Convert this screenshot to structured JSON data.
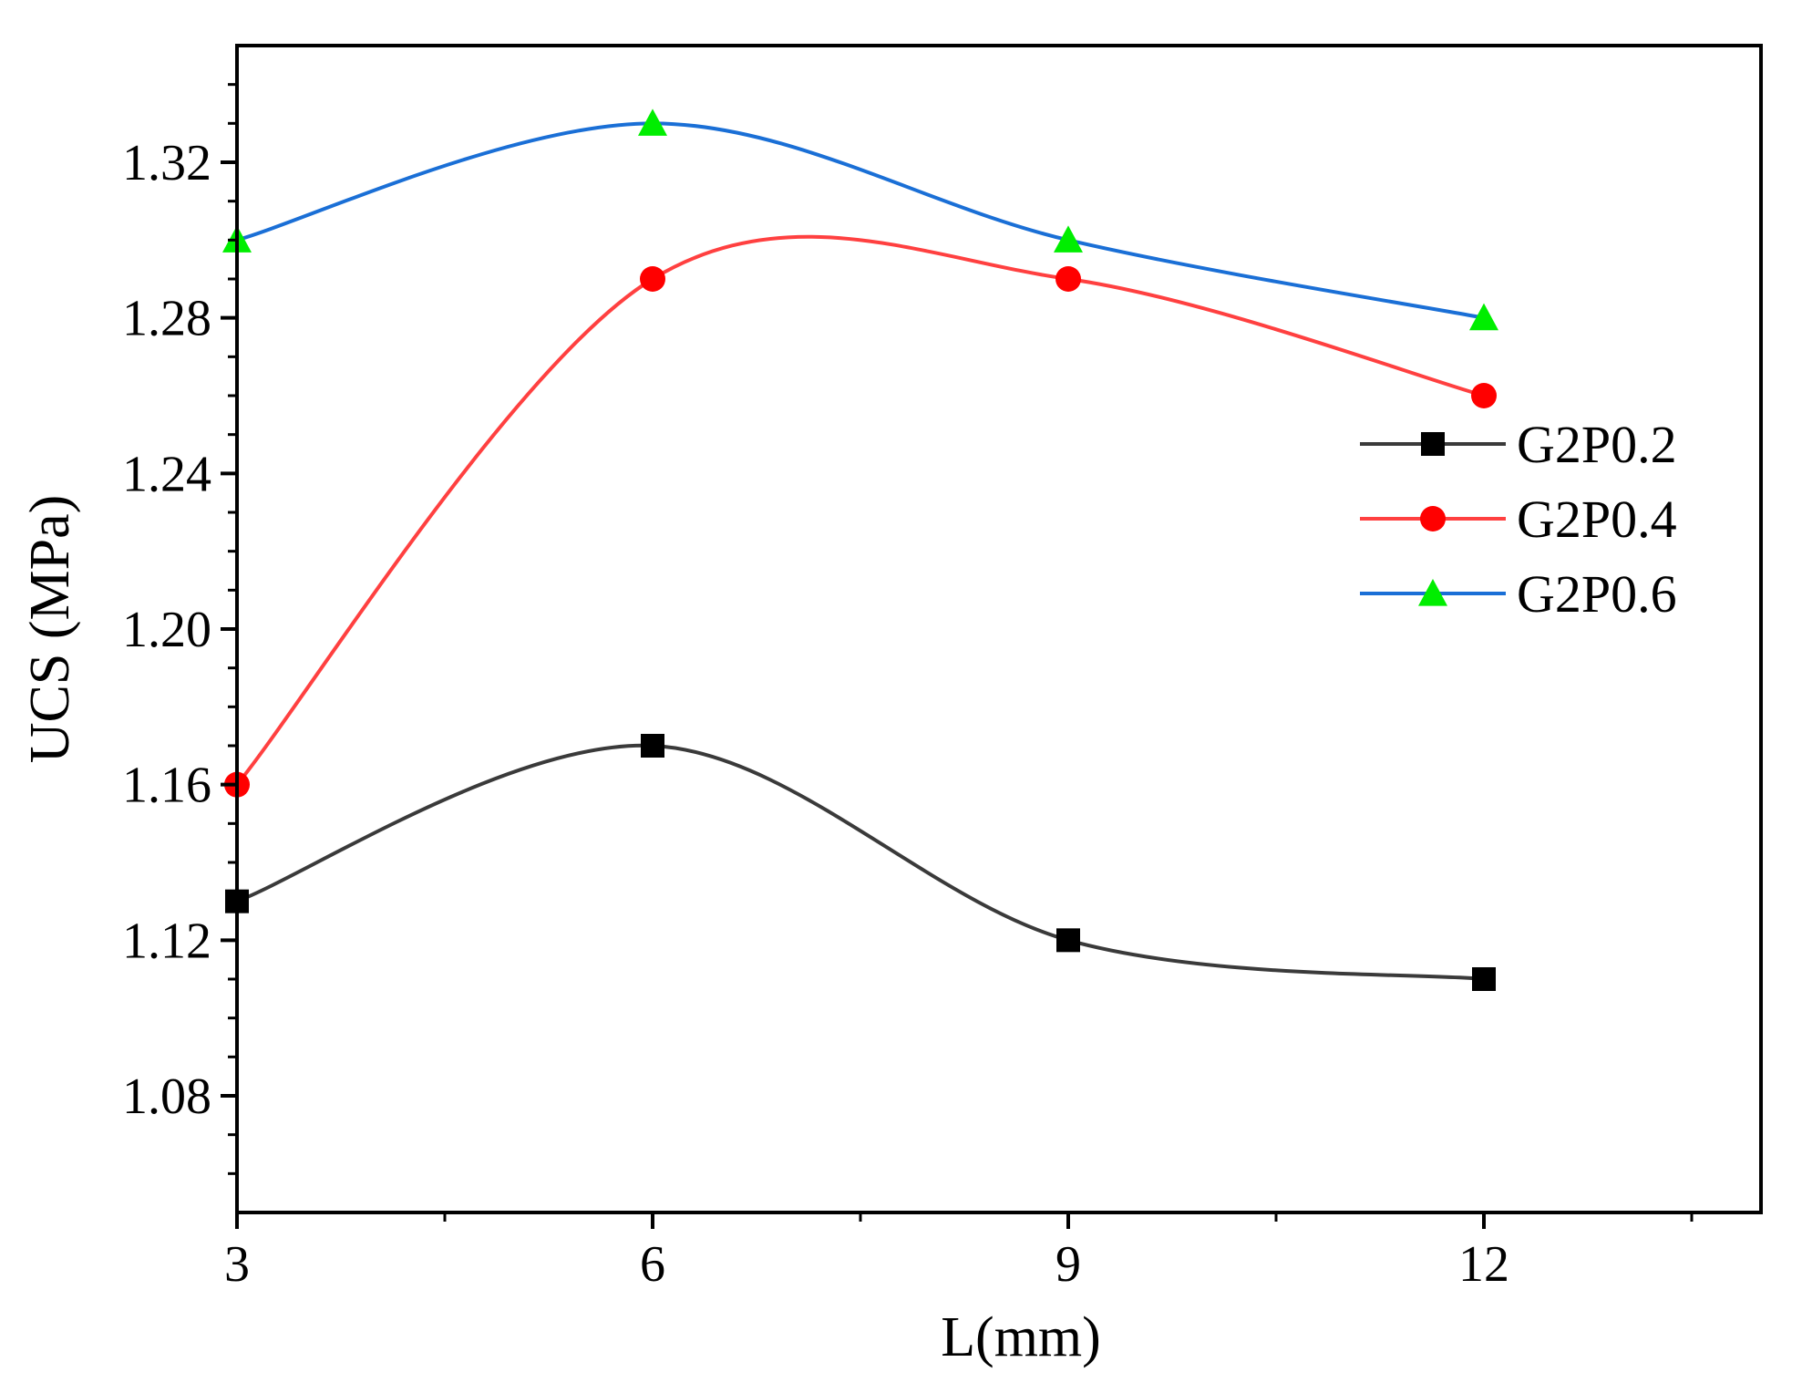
{
  "chart_data": {
    "type": "line",
    "title": "",
    "xlabel": "L(mm)",
    "ylabel": "UCS (MPa)",
    "x": [
      3,
      6,
      9,
      12
    ],
    "xlim": [
      3,
      14
    ],
    "ylim": [
      1.05,
      1.35
    ],
    "xticks": [
      "3",
      "6",
      "9",
      "12"
    ],
    "yticks": [
      "1.08",
      "1.12",
      "1.16",
      "1.20",
      "1.24",
      "1.28",
      "1.32"
    ],
    "grid": false,
    "legend_position": "right",
    "smooth": true,
    "series": [
      {
        "name": "G2P0.2",
        "values": [
          1.13,
          1.17,
          1.12,
          1.11
        ],
        "color": "#3a3a3a",
        "marker": "square",
        "marker_color": "#000000"
      },
      {
        "name": "G2P0.4",
        "values": [
          1.16,
          1.29,
          1.29,
          1.26
        ],
        "color": "#ff4040",
        "marker": "circle",
        "marker_color": "#ff0000"
      },
      {
        "name": "G2P0.6",
        "values": [
          1.3,
          1.33,
          1.3,
          1.28
        ],
        "color": "#1a6fd6",
        "marker": "triangle",
        "marker_color": "#00ee00"
      }
    ]
  }
}
